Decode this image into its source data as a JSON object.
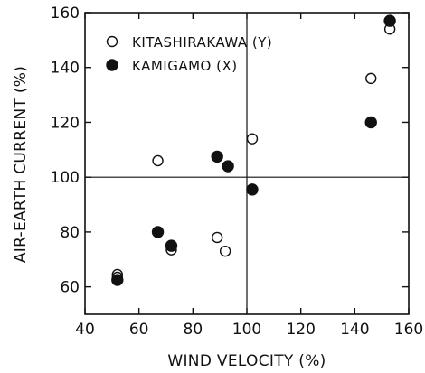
{
  "chart_data": {
    "type": "scatter",
    "title": "",
    "xlabel": "WIND VELOCITY (%)",
    "ylabel": "AIR-EARTH CURRENT (%)",
    "xlim": [
      40,
      160
    ],
    "ylim": [
      50,
      160
    ],
    "x_ticks": [
      40,
      60,
      80,
      100,
      120,
      140,
      160
    ],
    "y_ticks": [
      60,
      80,
      100,
      120,
      140,
      160
    ],
    "reference_lines": {
      "x": 100,
      "y": 100
    },
    "grid": false,
    "legend_position": "top-left",
    "series": [
      {
        "name": "KITASHIRAKAWA (Y)",
        "marker": "open-circle",
        "x": [
          52,
          52,
          67,
          72,
          89,
          92,
          102,
          146,
          153
        ],
        "y": [
          64.5,
          63.5,
          106,
          73.5,
          78,
          73,
          114,
          136,
          154
        ]
      },
      {
        "name": "KAMIGAMO (X)",
        "marker": "filled-circle",
        "x": [
          52,
          67,
          72,
          89,
          93,
          102,
          146,
          153
        ],
        "y": [
          62.5,
          80,
          75,
          107.5,
          104,
          95.5,
          120,
          157
        ]
      }
    ]
  }
}
